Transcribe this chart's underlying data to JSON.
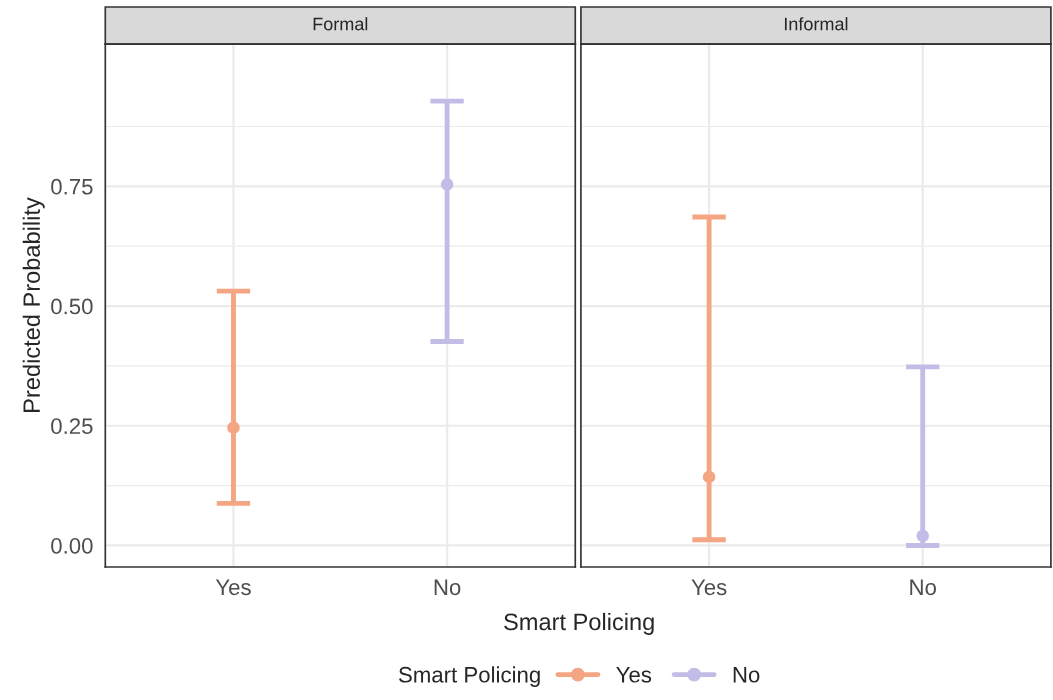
{
  "chart_data": [
    {
      "type": "scatter",
      "title": "Formal",
      "ylabel": "Predicted Probability",
      "xlabel": "Smart Policing",
      "legend_title": "Smart Policing",
      "legend": "bottom",
      "categories": [
        "Yes",
        "No"
      ],
      "ylim": [
        -0.045,
        1.047
      ],
      "yticks": [
        {
          "value": 0,
          "label": "0.00"
        },
        0.25,
        {
          "value": 0.5,
          "label": "0.50"
        },
        0.75
      ],
      "grid": true,
      "marker": "circle",
      "series": [
        {
          "name": "Yes",
          "color": "#f4a582",
          "values": [
            0.246,
            null
          ],
          "errors": [
            [
              0.088,
              0.531
            ],
            null
          ]
        },
        {
          "name": "No",
          "color": "#c2bde6",
          "values": [
            null,
            0.754
          ],
          "errors": [
            null,
            [
              0.426,
              0.928
            ]
          ]
        }
      ]
    },
    {
      "type": "scatter",
      "title": "Informal",
      "categories": [
        "Yes",
        "No"
      ],
      "ylim": [
        -0.045,
        1.047
      ],
      "yticks": [
        0,
        0.25,
        0.5,
        0.75
      ],
      "grid": true,
      "marker": "circle",
      "tick_labels": "x",
      "series": [
        {
          "color": "#f4a582",
          "values": [
            0.143,
            null
          ],
          "errors": [
            [
              0.012,
              0.686
            ],
            null
          ]
        },
        {
          "color": "#c2bde6",
          "values": [
            null,
            0.02
          ],
          "errors": [
            null,
            [
              0.0,
              0.373
            ]
          ]
        }
      ]
    }
  ]
}
